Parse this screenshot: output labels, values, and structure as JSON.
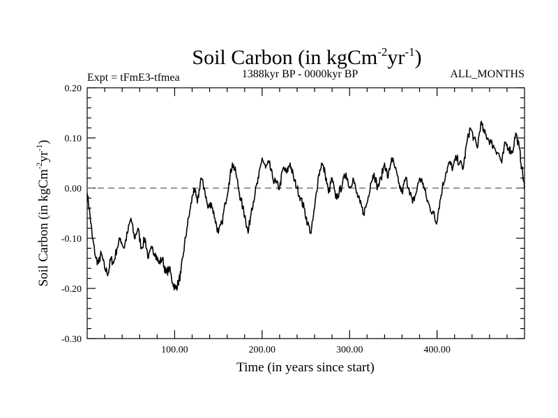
{
  "header": {
    "title_main": "Soil Carbon (in kgCm",
    "title_sup1": "-2",
    "title_mid": "yr",
    "title_sup2": "-1",
    "title_end": ")",
    "left_label": "Expt = tFmE3-tfmea",
    "center_label": "1388kyr BP - 0000kyr BP",
    "right_label": "ALL_MONTHS"
  },
  "chart_data": {
    "type": "line",
    "title": "Soil Carbon (in kgCm-2yr-1)",
    "xlabel": "Time (in years since start)",
    "ylabel": "Soil Carbon (in kgCm-2yr-1)",
    "ylabel_parts": {
      "main": "Soil Carbon (in kgCm",
      "sup1": "-2",
      "mid": "yr",
      "sup2": "-1",
      "end": ")"
    },
    "xlim": [
      0,
      500
    ],
    "ylim": [
      -0.3,
      0.2
    ],
    "x_tick_labels": [
      {
        "value": 100,
        "label": "100.00"
      },
      {
        "value": 200,
        "label": "200.00"
      },
      {
        "value": 300,
        "label": "300.00"
      },
      {
        "value": 400,
        "label": "400.00"
      }
    ],
    "y_tick_labels": [
      {
        "value": 0.2,
        "label": "0.20"
      },
      {
        "value": 0.1,
        "label": "0.10"
      },
      {
        "value": 0.0,
        "label": "0.00"
      },
      {
        "value": -0.1,
        "label": "-0.10"
      },
      {
        "value": -0.2,
        "label": "-0.20"
      },
      {
        "value": -0.3,
        "label": "-0.30"
      }
    ],
    "reference_line": {
      "y": 0.0,
      "style": "dashed"
    },
    "series": [
      {
        "name": "Soil Carbon",
        "x": [
          0,
          3,
          6,
          10,
          13,
          16,
          20,
          24,
          27,
          30,
          34,
          38,
          42,
          46,
          50,
          54,
          58,
          62,
          66,
          70,
          74,
          78,
          82,
          86,
          90,
          94,
          98,
          101,
          104,
          107,
          110,
          114,
          118,
          122,
          126,
          130,
          134,
          138,
          142,
          146,
          150,
          154,
          158,
          162,
          166,
          170,
          174,
          178,
          181,
          184,
          188,
          192,
          196,
          200,
          204,
          208,
          212,
          216,
          220,
          224,
          228,
          232,
          236,
          240,
          244,
          248,
          252,
          256,
          260,
          264,
          268,
          272,
          276,
          280,
          284,
          288,
          292,
          296,
          300,
          304,
          308,
          312,
          316,
          320,
          324,
          328,
          332,
          336,
          340,
          344,
          348,
          352,
          356,
          360,
          364,
          368,
          372,
          376,
          380,
          384,
          388,
          392,
          396,
          399,
          402,
          406,
          410,
          414,
          418,
          422,
          426,
          430,
          434,
          438,
          442,
          446,
          450,
          454,
          458,
          462,
          466,
          470,
          474,
          478,
          482,
          486,
          490,
          494,
          497,
          500
        ],
        "values": [
          -0.01,
          -0.05,
          -0.1,
          -0.14,
          -0.15,
          -0.13,
          -0.16,
          -0.17,
          -0.14,
          -0.15,
          -0.12,
          -0.1,
          -0.12,
          -0.09,
          -0.06,
          -0.1,
          -0.08,
          -0.12,
          -0.1,
          -0.14,
          -0.12,
          -0.13,
          -0.15,
          -0.14,
          -0.17,
          -0.16,
          -0.19,
          -0.2,
          -0.19,
          -0.17,
          -0.13,
          -0.08,
          -0.04,
          0.0,
          -0.03,
          0.02,
          0.0,
          -0.04,
          -0.03,
          -0.06,
          -0.09,
          -0.07,
          -0.03,
          0.01,
          0.05,
          0.03,
          -0.01,
          -0.04,
          -0.06,
          -0.09,
          -0.04,
          -0.01,
          0.02,
          0.06,
          0.04,
          0.05,
          0.02,
          0.01,
          0.0,
          0.04,
          0.03,
          0.05,
          0.02,
          0.0,
          -0.02,
          -0.04,
          -0.07,
          -0.09,
          -0.04,
          0.02,
          0.05,
          0.03,
          -0.01,
          0.02,
          -0.02,
          -0.01,
          0.01,
          0.03,
          0.0,
          0.02,
          -0.01,
          -0.03,
          -0.05,
          -0.03,
          0.01,
          0.03,
          0.0,
          0.02,
          0.05,
          0.02,
          0.06,
          0.04,
          0.01,
          -0.01,
          0.02,
          0.0,
          -0.03,
          -0.01,
          0.02,
          0.01,
          -0.02,
          -0.04,
          -0.05,
          -0.07,
          -0.04,
          0.0,
          0.03,
          0.05,
          0.04,
          0.06,
          0.05,
          0.04,
          0.09,
          0.12,
          0.1,
          0.08,
          0.13,
          0.11,
          0.1,
          0.09,
          0.08,
          0.07,
          0.05,
          0.09,
          0.08,
          0.07,
          0.11,
          0.08,
          0.04,
          0.0
        ]
      }
    ]
  }
}
